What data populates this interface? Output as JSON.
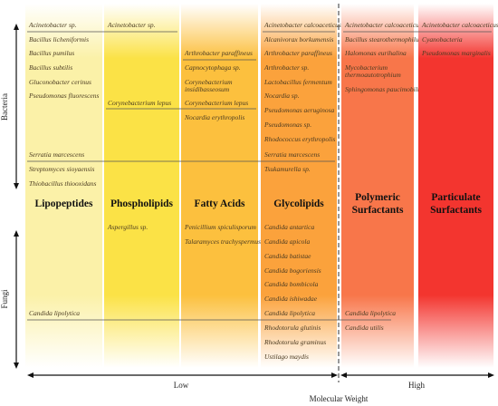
{
  "axis": {
    "bacteria": "Bacteria",
    "fungi": "Fungi",
    "low": "Low",
    "high": "High",
    "label": "Molecular Weight"
  },
  "columns": [
    {
      "heading": [
        "Lipopeptides"
      ],
      "items": [
        "Acinetobacter sp.",
        "Bacillus licheniformis",
        "Bacillus pumilus",
        "Bacillus subtilis",
        "Gluconobacter cerinus",
        "Pseudomonas fluorescens",
        "Serratia marcescens",
        "Streptomyces sioyaensis",
        "Thiobacillus thiooxidans",
        "Candida lipolytica"
      ]
    },
    {
      "heading": [
        "Phospholipids"
      ],
      "items": [
        "Acinetobacter sp.",
        "Corynebacterium lepus",
        "Aspergillus sp."
      ]
    },
    {
      "heading": [
        "Fatty Acids"
      ],
      "items": [
        "Arthrobacter paraffineus",
        "Capnocytophaga sp.",
        [
          "Corynebacterium",
          "insidibasseosum"
        ],
        "Corynebacterium lepus",
        "Nocardia erythropolis",
        "Penicillium spiculisporum",
        "Talaramyces trachyspermus"
      ]
    },
    {
      "heading": [
        "Glycolipids"
      ],
      "items": [
        "Acinetobacter calcoaceticus",
        "Alcanivorax borkumensis",
        "Arthrobacter paraffineus",
        "Arthrobacter sp.",
        "Lactobacillus fermentum",
        "Nocardia sp.",
        "Pseudomonas aeruginosa",
        "Pseudomonas sp.",
        "Rhodococcus erythropolis",
        "Serratia marcescens",
        "Tsukamurella sp.",
        "Candida antartica",
        "Candida apicola",
        "Candida batistae",
        "Candida bogoriensis",
        "Candida bombicola",
        "Candida ishiwadae",
        "Candida lipolytica",
        "Rhodotorula glutinis",
        "Rhodotorula graminus",
        "Ustilago maydis"
      ]
    },
    {
      "heading": [
        "Polymeric",
        "Surfactants"
      ],
      "items": [
        "Acinetobacter calcoaceticus",
        "Bacillus stearothermophilus",
        "Halomonas eurihalina",
        [
          "Mycobacterium",
          "thermoautotrophium"
        ],
        "Sphingomonas paucimobilis",
        "Candida lipolytica",
        "Candida utilis"
      ]
    },
    {
      "heading": [
        "Particulate",
        "Surfactants"
      ],
      "items": [
        "Acinetobacter calcoaceticus",
        "Cyanobacteria",
        "Pseudomonas marginalis"
      ]
    }
  ]
}
